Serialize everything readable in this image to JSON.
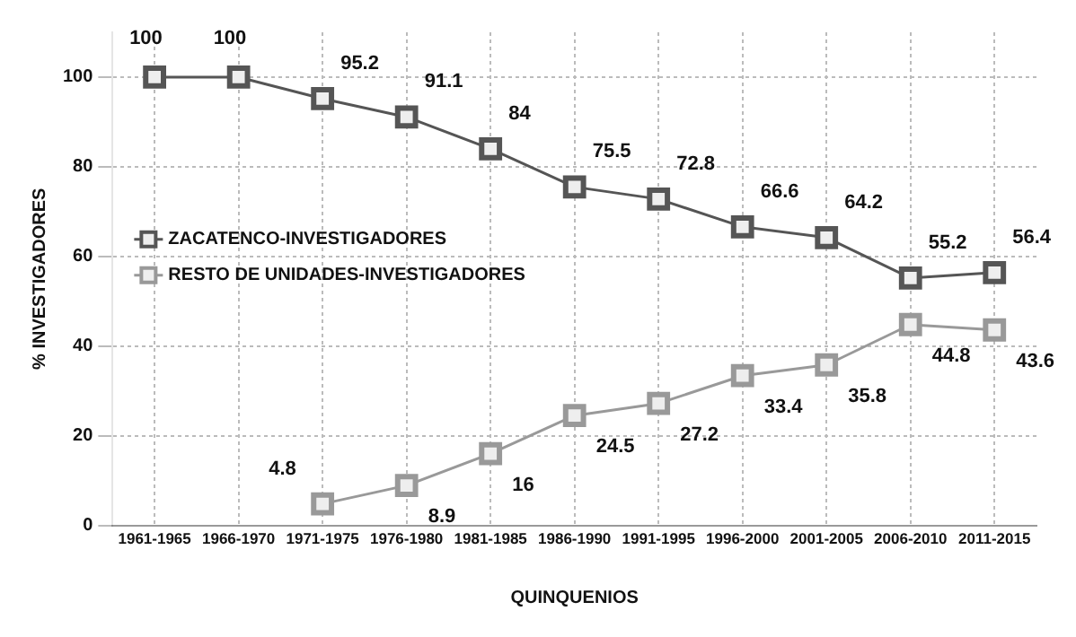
{
  "chart_data": {
    "type": "line",
    "xlabel": "QUINQUENIOS",
    "ylabel": "% INVESTIGADORES",
    "categories": [
      "1961-1965",
      "1966-1970",
      "1971-1975",
      "1976-1980",
      "1981-1985",
      "1986-1990",
      "1991-1995",
      "1996-2000",
      "2001-2005",
      "2006-2010",
      "2011-2015"
    ],
    "series": [
      {
        "name": "ZACATENCO-INVESTIGADORES",
        "color": "#555555",
        "values": [
          100,
          100,
          95.2,
          91.1,
          84,
          75.5,
          72.8,
          66.6,
          64.2,
          55.2,
          56.4
        ]
      },
      {
        "name": "RESTO DE UNIDADES-INVESTIGADORES",
        "color": "#999999",
        "values": [
          null,
          null,
          4.8,
          8.9,
          16,
          24.5,
          27.2,
          33.4,
          35.8,
          44.8,
          43.6
        ]
      }
    ],
    "ylim": [
      0,
      110
    ],
    "yticks": [
      0,
      20,
      40,
      60,
      80,
      100
    ],
    "grid": true,
    "legend": "left",
    "marker": "square",
    "data_labels": true
  }
}
